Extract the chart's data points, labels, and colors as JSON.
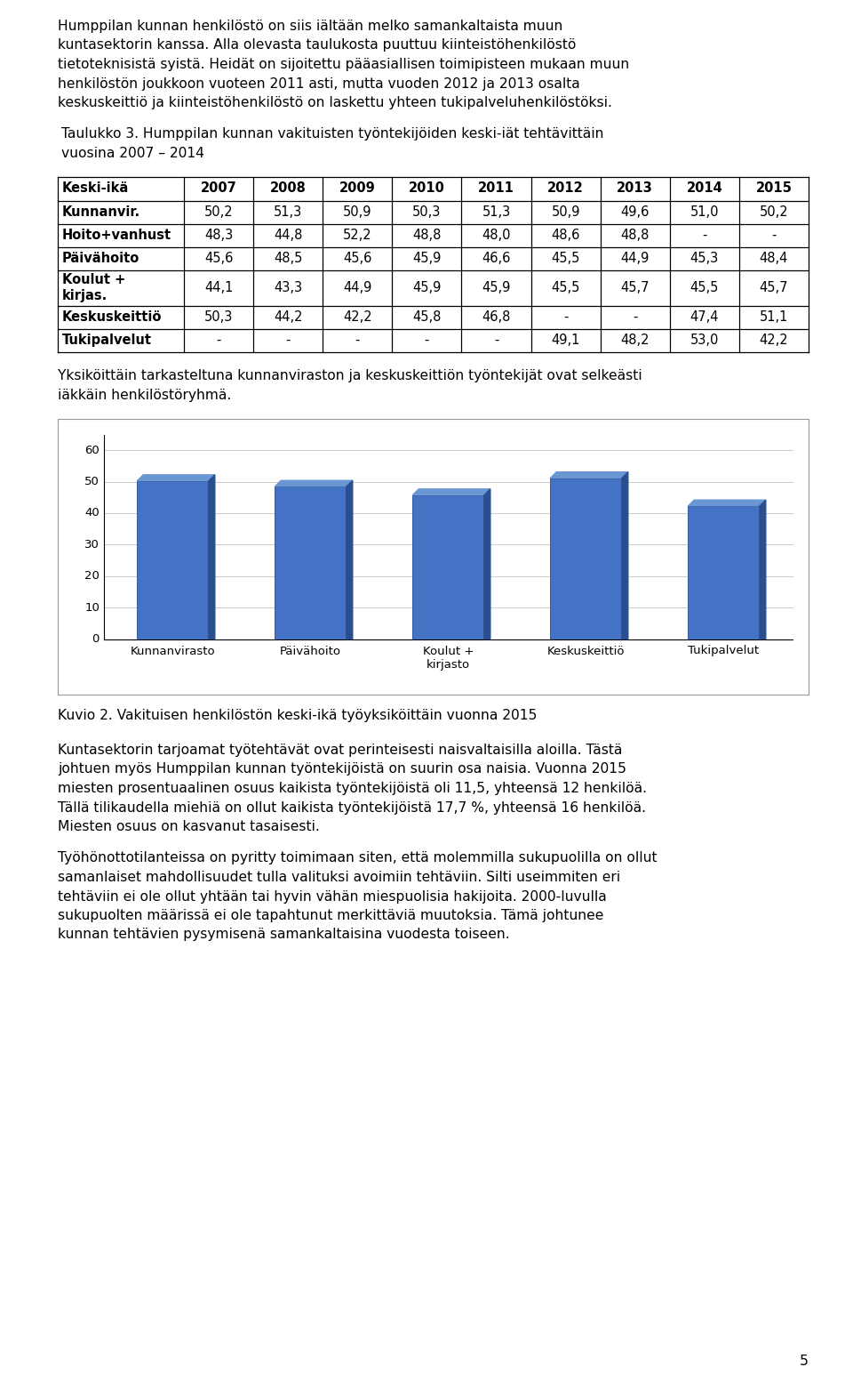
{
  "page_text_top": [
    "Humppilan kunnan henkilöstö on siis iältään melko samankaltaista muun",
    "kuntasektorin kanssa. Alla olevasta taulukosta puuttuu kiinteistöhenkilöstö",
    "tietoteknisistä syistä. Heidät on sijoitettu pääasiallisen toimipisteen mukaan muun",
    "henkilöstön joukkoon vuoteen 2011 asti, mutta vuoden 2012 ja 2013 osalta",
    "keskuskeittiö ja kiinteistöhenkilöstö on laskettu yhteen tukipalveluhenkilöstöksi."
  ],
  "table_title_line1": "Taulukko 3. Humppilan kunnan vakituisten työntekijöiden keski-iät tehtävittäin",
  "table_title_line2": "vuosina 2007 – 2014",
  "table_headers": [
    "Keski-ikä",
    "2007",
    "2008",
    "2009",
    "2010",
    "2011",
    "2012",
    "2013",
    "2014",
    "2015"
  ],
  "table_rows": [
    [
      "Kunnanvir.",
      "50,2",
      "51,3",
      "50,9",
      "50,3",
      "51,3",
      "50,9",
      "49,6",
      "51,0",
      "50,2"
    ],
    [
      "Hoito+vanhust",
      "48,3",
      "44,8",
      "52,2",
      "48,8",
      "48,0",
      "48,6",
      "48,8",
      "-",
      "-"
    ],
    [
      "Päivähoito",
      "45,6",
      "48,5",
      "45,6",
      "45,9",
      "46,6",
      "45,5",
      "44,9",
      "45,3",
      "48,4"
    ],
    [
      "Koulut +\nkirjas.",
      "44,1",
      "43,3",
      "44,9",
      "45,9",
      "45,9",
      "45,5",
      "45,7",
      "45,5",
      "45,7"
    ],
    [
      "Keskuskeittiö",
      "50,3",
      "44,2",
      "42,2",
      "45,8",
      "46,8",
      "-",
      "-",
      "47,4",
      "51,1"
    ],
    [
      "Tukipalvelut",
      "-",
      "-",
      "-",
      "-",
      "-",
      "49,1",
      "48,2",
      "53,0",
      "42,2"
    ]
  ],
  "middle_text_line1": "Yksiköittäin tarkasteltuna kunnanviraston ja keskuskeittiön työntekijät ovat selkeästi",
  "middle_text_line2": "iäkkäin henkilöstöryhmä.",
  "chart_categories": [
    "Kunnanvirasto",
    "Päivähoito",
    "Koulut +\nkirjasto",
    "Keskuskeittiö",
    "Tukipalvelut"
  ],
  "chart_values": [
    50.2,
    48.4,
    45.7,
    51.1,
    42.2
  ],
  "chart_bar_color": "#4472C4",
  "chart_bar_dark": "#2A4F8F",
  "chart_bar_light": "#6A96D4",
  "chart_yticks": [
    0,
    10,
    20,
    30,
    40,
    50,
    60
  ],
  "chart_ylim": [
    0,
    65
  ],
  "caption": "Kuvio 2. Vakituisen henkilöstön keski-ikä työyksiköittäin vuonna 2015",
  "para1_lines": [
    "Kuntasektorin tarjoamat työtehtävät ovat perinteisesti naisvaltaisilla aloilla. Tästä",
    "johtuen myös Humppilan kunnan työntekijöistä on suurin osa naisia. Vuonna 2015",
    "miesten prosentuaalinen osuus kaikista työntekijöistä oli 11,5, yhteensä 12 henkilöä.",
    "Tällä tilikaudella miehiä on ollut kaikista työntekijöistä 17,7 %, yhteensä 16 henkilöä.",
    "Miesten osuus on kasvanut tasaisesti."
  ],
  "para2_lines": [
    "Työhönottotilanteissa on pyritty toimimaan siten, että molemmilla sukupuolilla on ollut",
    "samanlaiset mahdollisuudet tulla valituksi avoimiin tehtäviin. Silti useimmiten eri",
    "tehtäviin ei ole ollut yhtään tai hyvin vähän miespuolisia hakijoita. 2000-luvulla",
    "sukupuolten määrissä ei ole tapahtunut merkittäviä muutoksia. Tämä johtunee",
    "kunnan tehtävien pysymisenä samankaltaisina vuodesta toiseen."
  ],
  "page_number": "5"
}
